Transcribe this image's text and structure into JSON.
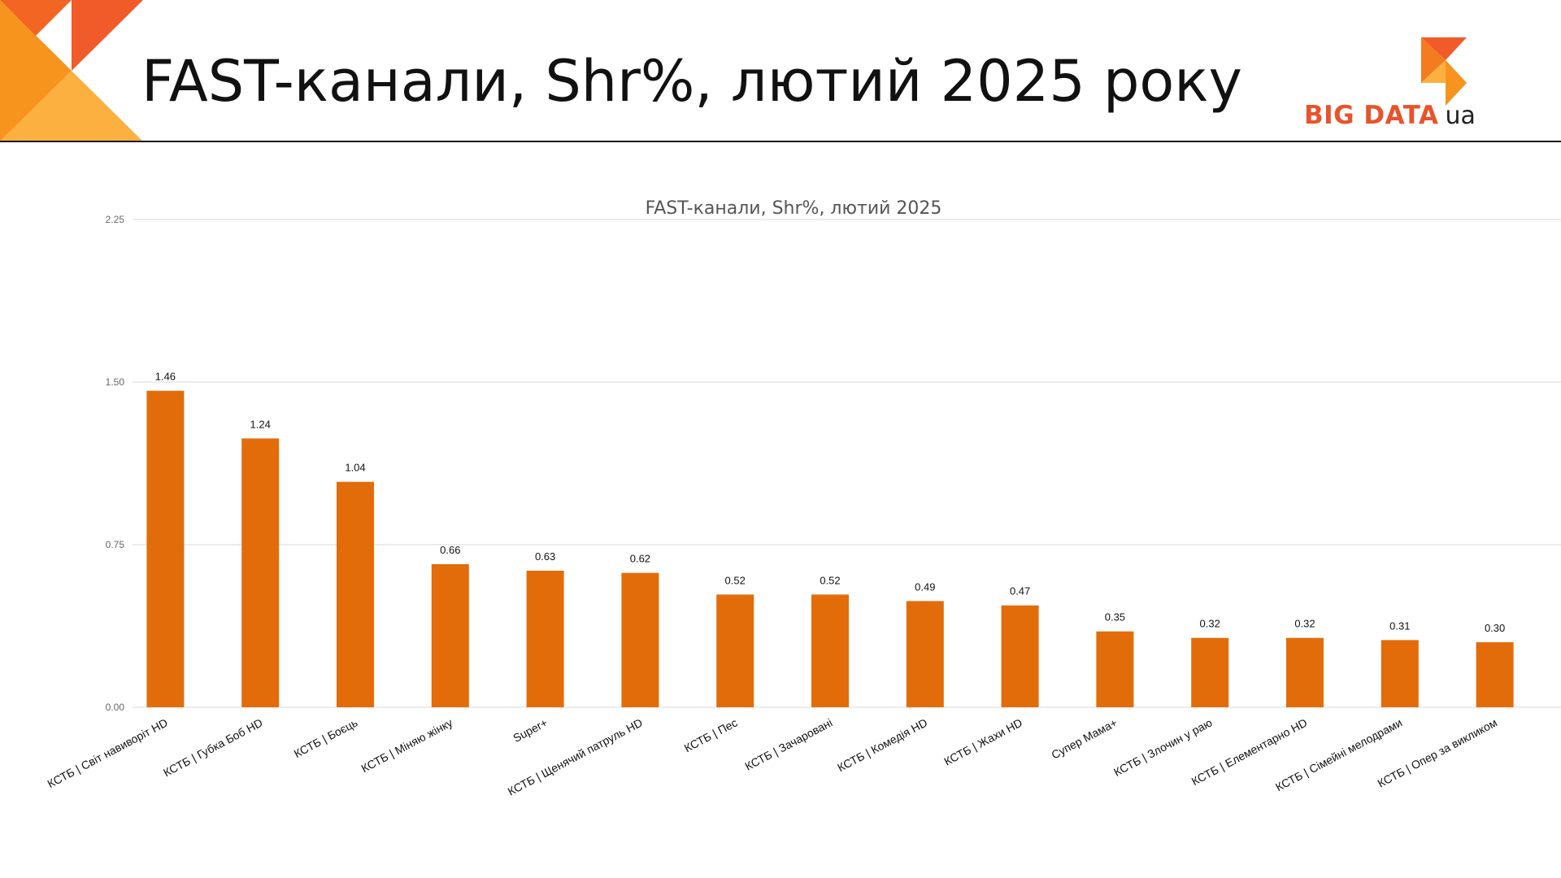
{
  "slide": {
    "title": "FAST-канали, Shr%, лютий 2025 року"
  },
  "logo": {
    "brand": "BIG DATA",
    "suffix": "ua"
  },
  "colors": {
    "bar": "#e36c0a",
    "accent": "#f47c20",
    "gridline": "#d9d9d9",
    "header_rule": "#1a1a1a"
  },
  "chart_data": {
    "type": "bar",
    "title": "FAST-канали, Shr%, лютий 2025",
    "xlabel": "",
    "ylabel": "",
    "ylim": [
      0,
      2.25
    ],
    "yticks": [
      "0.00",
      "0.75",
      "1.50",
      "2.25"
    ],
    "grid": true,
    "legend": "none",
    "categories": [
      "КСТБ | Світ навиворіт HD",
      "КСТБ | Губка Боб HD",
      "КСТБ | Боєць",
      "КСТБ | Міняю жінку",
      "Super+",
      "КСТБ | Щенячий патруль HD",
      "КСТБ | Пес",
      "КСТБ | Зачаровані",
      "КСТБ | Комедія HD",
      "КСТБ | Жахи HD",
      "Супер Мама+",
      "КСТБ | Злочин у раю",
      "КСТБ | Елементарно HD",
      "КСТБ | Сімейні мелодрами",
      "КСТБ | Опер за викликом"
    ],
    "values": [
      1.46,
      1.24,
      1.04,
      0.66,
      0.63,
      0.62,
      0.52,
      0.52,
      0.49,
      0.47,
      0.35,
      0.32,
      0.32,
      0.31,
      0.3
    ],
    "value_labels": [
      "1.46",
      "1.24",
      "1.04",
      "0.66",
      "0.63",
      "0.62",
      "0.52",
      "0.52",
      "0.49",
      "0.47",
      "0.35",
      "0.32",
      "0.32",
      "0.31",
      "0.30"
    ]
  }
}
